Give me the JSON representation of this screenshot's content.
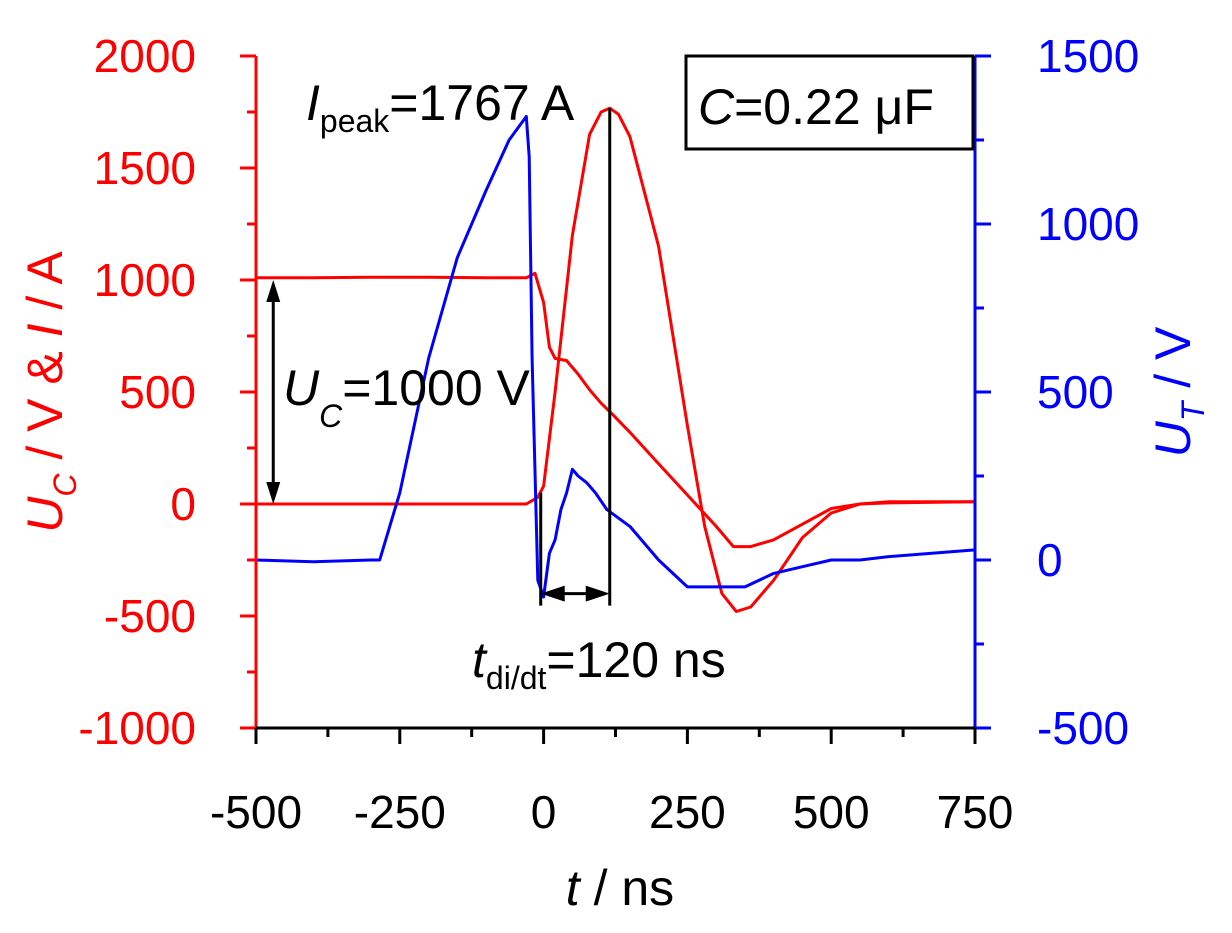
{
  "chart_data": {
    "type": "line",
    "x_axis": {
      "label_var": "t",
      "label_unit": " / ns",
      "range": [
        -500,
        750
      ],
      "ticks": [
        "-500",
        "-250",
        "0",
        "250",
        "500",
        "750"
      ],
      "tick_values": [
        -500,
        -250,
        0,
        250,
        500,
        750
      ]
    },
    "y_left": {
      "label": "U_C / V & I / A",
      "label_parts": [
        "U",
        "C",
        " / V & ",
        "I",
        " / A"
      ],
      "range": [
        -1000,
        2000
      ],
      "ticks": [
        "-1000",
        "-500",
        "0",
        "500",
        "1000",
        "1500",
        "2000"
      ],
      "tick_values": [
        -1000,
        -500,
        0,
        500,
        1000,
        1500,
        2000
      ],
      "color": "#ff0000"
    },
    "y_right": {
      "label": "U_T / V",
      "label_parts": [
        "U",
        "T",
        " / V"
      ],
      "range": [
        -500,
        1500
      ],
      "ticks": [
        "-500",
        "0",
        "500",
        "1000",
        "1500"
      ],
      "tick_values": [
        -500,
        0,
        500,
        1000,
        1500
      ],
      "color": "#0000ff"
    },
    "series": [
      {
        "axis": "left",
        "color": "#ff0000",
        "x": [
          -500,
          -400,
          -300,
          -200,
          -100,
          -30,
          -15,
          0,
          10,
          20,
          40,
          60,
          80,
          100,
          120,
          150,
          200,
          250,
          300,
          330,
          360,
          400,
          450,
          500,
          550,
          600,
          700,
          750
        ],
        "y": [
          1010,
          1010,
          1012,
          1012,
          1010,
          1010,
          1030,
          900,
          700,
          650,
          640,
          580,
          510,
          450,
          400,
          320,
          180,
          40,
          -100,
          -190,
          -190,
          -160,
          -90,
          -20,
          0,
          10,
          10,
          10
        ]
      },
      {
        "axis": "left",
        "color": "#ff0000",
        "x": [
          -500,
          -400,
          -300,
          -200,
          -100,
          -30,
          -10,
          0,
          20,
          50,
          80,
          100,
          115,
          130,
          150,
          200,
          250,
          280,
          310,
          335,
          360,
          400,
          450,
          500,
          550,
          600,
          750
        ],
        "y": [
          0,
          0,
          0,
          0,
          0,
          0,
          30,
          80,
          500,
          1200,
          1650,
          1750,
          1767,
          1740,
          1640,
          1150,
          350,
          -100,
          -400,
          -480,
          -460,
          -340,
          -150,
          -40,
          0,
          5,
          10
        ]
      },
      {
        "axis": "right",
        "color": "#0000ff",
        "x": [
          -500,
          -400,
          -300,
          -285,
          -250,
          -200,
          -150,
          -100,
          -60,
          -30,
          -25,
          -20,
          -10,
          0,
          10,
          20,
          30,
          40,
          50,
          60,
          75,
          90,
          110,
          150,
          200,
          250,
          300,
          350,
          400,
          450,
          500,
          550,
          600,
          750
        ],
        "y": [
          0,
          -5,
          0,
          0,
          200,
          600,
          900,
          1100,
          1250,
          1320,
          1200,
          600,
          -60,
          -110,
          20,
          60,
          150,
          200,
          270,
          250,
          230,
          200,
          150,
          100,
          0,
          -80,
          -80,
          -80,
          -40,
          -20,
          0,
          0,
          10,
          30
        ]
      }
    ],
    "annotations": {
      "i_peak": {
        "var": "I",
        "sub": "peak",
        "text": "=1767 A"
      },
      "capacitance": {
        "var": "C",
        "text": "=0.22 μF"
      },
      "u_c": {
        "var": "U",
        "sub": "C",
        "text": "=1000 V"
      },
      "t_didt": {
        "var": "t",
        "sub": "di/dt",
        "text": "=120 ns"
      }
    },
    "grid": false,
    "legend": "none"
  }
}
